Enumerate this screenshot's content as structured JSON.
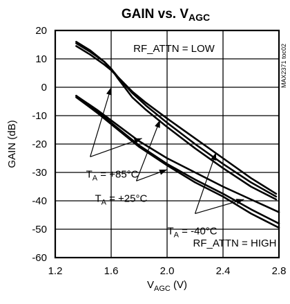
{
  "chart_data": {
    "type": "line",
    "title": {
      "main": "GAIN vs. V",
      "sub": "AGC"
    },
    "xlabel": {
      "main": "V",
      "sub": "AGC",
      "unit": " (V)"
    },
    "ylabel": "GAIN (dB)",
    "xlim": [
      1.2,
      2.8
    ],
    "ylim": [
      -60,
      20
    ],
    "xticks": [
      1.2,
      1.6,
      2.0,
      2.4,
      2.8
    ],
    "xtick_labels": [
      "1.2",
      "1.6",
      "2.0",
      "2.4",
      "2.8"
    ],
    "yticks": [
      -60,
      -50,
      -40,
      -30,
      -20,
      -10,
      0,
      10,
      20
    ],
    "ytick_labels": [
      "-60",
      "-50",
      "-40",
      "-30",
      "-20",
      "-10",
      "0",
      "10",
      "20"
    ],
    "grid": true,
    "figure_code": "MAX2371 toc02",
    "groups": [
      {
        "label": "RF_ATTN = LOW",
        "series": [
          {
            "x": [
              1.35,
              1.45,
              1.55,
              1.6,
              1.65,
              1.75,
              1.85,
              2.0,
              2.2,
              2.4,
              2.6,
              2.78
            ],
            "y": [
              14.5,
              11.5,
              8.0,
              6.0,
              3.5,
              -1.5,
              -5.5,
              -11.0,
              -18.0,
              -25.0,
              -32.0,
              -37.5
            ]
          },
          {
            "x": [
              1.35,
              1.45,
              1.55,
              1.6,
              1.65,
              1.75,
              1.85,
              2.0,
              2.2,
              2.4,
              2.6,
              2.78
            ],
            "y": [
              15.5,
              12.5,
              9.0,
              6.5,
              3.5,
              -2.0,
              -6.5,
              -12.5,
              -20.0,
              -27.0,
              -33.5,
              -38.5
            ]
          },
          {
            "x": [
              1.35,
              1.45,
              1.55,
              1.6,
              1.65,
              1.75,
              1.85,
              2.0,
              2.2,
              2.4,
              2.6,
              2.78
            ],
            "y": [
              16.0,
              13.0,
              9.0,
              6.5,
              3.0,
              -3.5,
              -8.0,
              -14.0,
              -21.5,
              -28.5,
              -35.0,
              -39.5
            ]
          }
        ]
      },
      {
        "label": "RF_ATTN = HIGH",
        "series": [
          {
            "x": [
              1.35,
              1.5,
              1.65,
              1.8,
              2.0,
              2.2,
              2.4,
              2.6,
              2.8
            ],
            "y": [
              -3.0,
              -8.0,
              -13.5,
              -19.0,
              -25.0,
              -30.0,
              -35.0,
              -39.5,
              -44.0
            ]
          },
          {
            "x": [
              1.35,
              1.5,
              1.65,
              1.8,
              2.0,
              2.2,
              2.4,
              2.6,
              2.8
            ],
            "y": [
              -3.0,
              -8.5,
              -14.5,
              -20.5,
              -27.0,
              -32.5,
              -37.5,
              -43.0,
              -48.0
            ]
          },
          {
            "x": [
              1.35,
              1.5,
              1.65,
              1.8,
              2.0,
              2.2,
              2.4,
              2.6,
              2.8
            ],
            "y": [
              -3.5,
              -9.0,
              -15.0,
              -21.0,
              -27.5,
              -33.5,
              -38.5,
              -44.5,
              -49.5
            ]
          }
        ]
      }
    ],
    "annotations": [
      {
        "label_main": "T",
        "label_sub": "A",
        "label_rest": " = +85°C",
        "anchor": {
          "x": 1.45,
          "y": -24.5
        },
        "targets": [
          {
            "x": 1.6,
            "y": 0.0
          },
          {
            "x": 1.82,
            "y": -18.0
          }
        ]
      },
      {
        "label_main": "T",
        "label_sub": "A",
        "label_rest": " = +25°C",
        "anchor": {
          "x": 1.78,
          "y": -33.0
        },
        "targets": [
          {
            "x": 1.95,
            "y": -11.5
          },
          {
            "x": 2.0,
            "y": -29.0
          }
        ]
      },
      {
        "label_main": "T",
        "label_sub": "A",
        "label_rest": " = -40°C",
        "anchor": {
          "x": 2.2,
          "y": -44.5
        },
        "targets": [
          {
            "x": 2.35,
            "y": -23.0
          },
          {
            "x": 2.55,
            "y": -39.5
          }
        ]
      }
    ]
  }
}
